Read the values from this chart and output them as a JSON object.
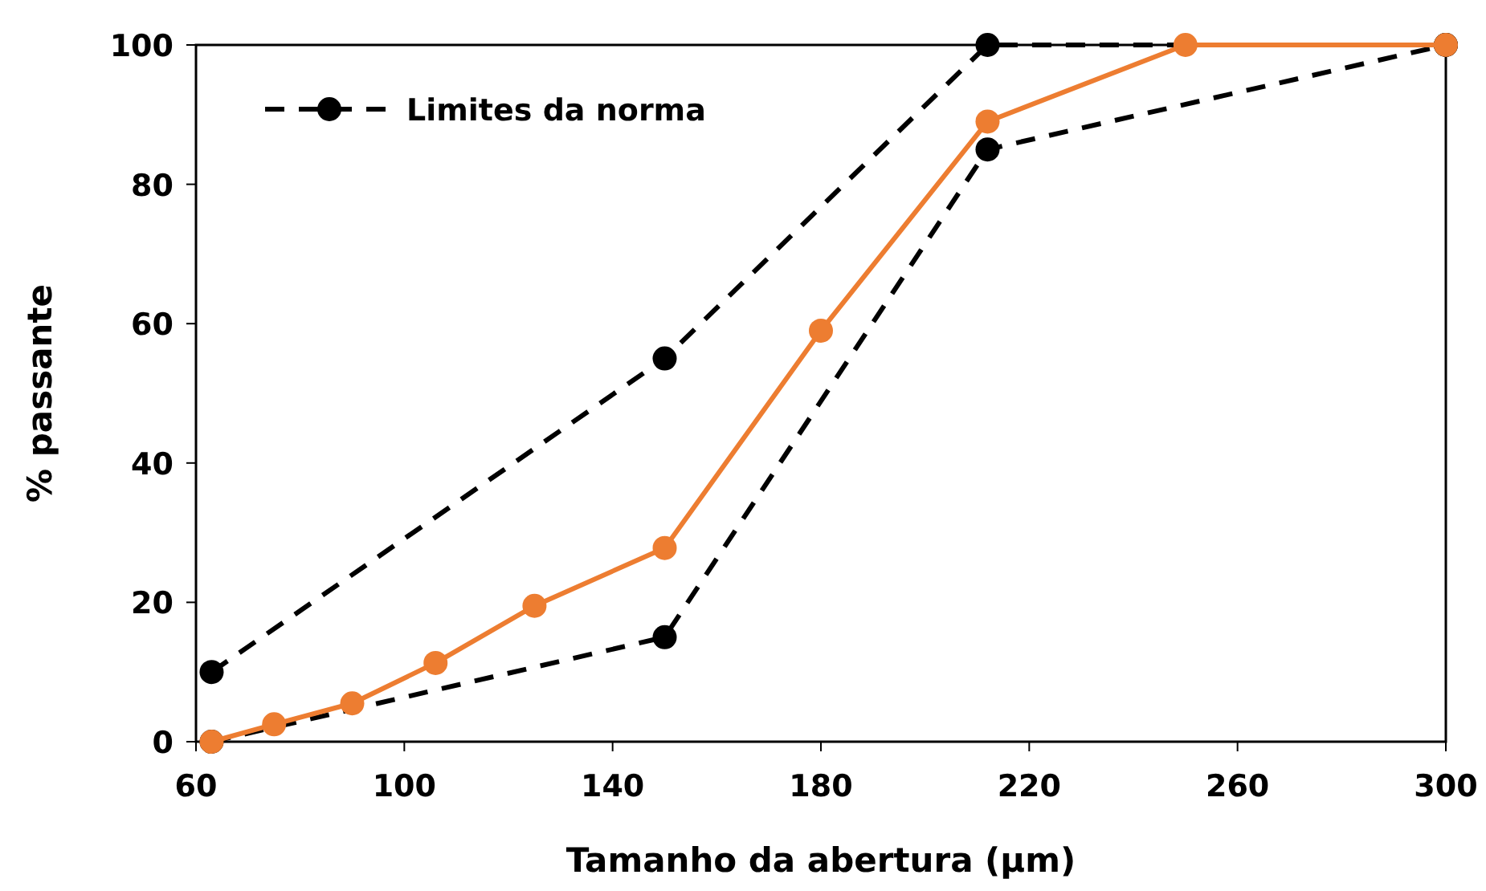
{
  "chart_data": {
    "type": "line",
    "xlabel": "Tamanho da abertura (µm)",
    "ylabel": "% passante",
    "xlim": [
      60,
      300
    ],
    "xticks": [
      60,
      100,
      140,
      180,
      220,
      260,
      300
    ],
    "ylim": [
      0,
      100
    ],
    "yticks": [
      0,
      20,
      40,
      60,
      80,
      100
    ],
    "grid": false,
    "legend": "top left",
    "marker": "circle",
    "series": [
      {
        "name": "Limites da norma",
        "color": "#000000",
        "line_style": "dashed",
        "x": [
          63,
          150,
          212,
          300
        ],
        "values": [
          10,
          55,
          100,
          100
        ]
      },
      {
        "color": "#000000",
        "line_style": "dashed",
        "x": [
          63,
          150,
          212,
          300
        ],
        "values": [
          0,
          15,
          85,
          100
        ]
      },
      {
        "color": "#ed7d31",
        "line_style": "solid",
        "x": [
          63,
          75,
          90,
          106,
          125,
          150,
          180,
          212,
          250,
          300
        ],
        "values": [
          0,
          2.5,
          5.5,
          11.3,
          19.5,
          27.8,
          59,
          89,
          100,
          100
        ]
      }
    ]
  }
}
